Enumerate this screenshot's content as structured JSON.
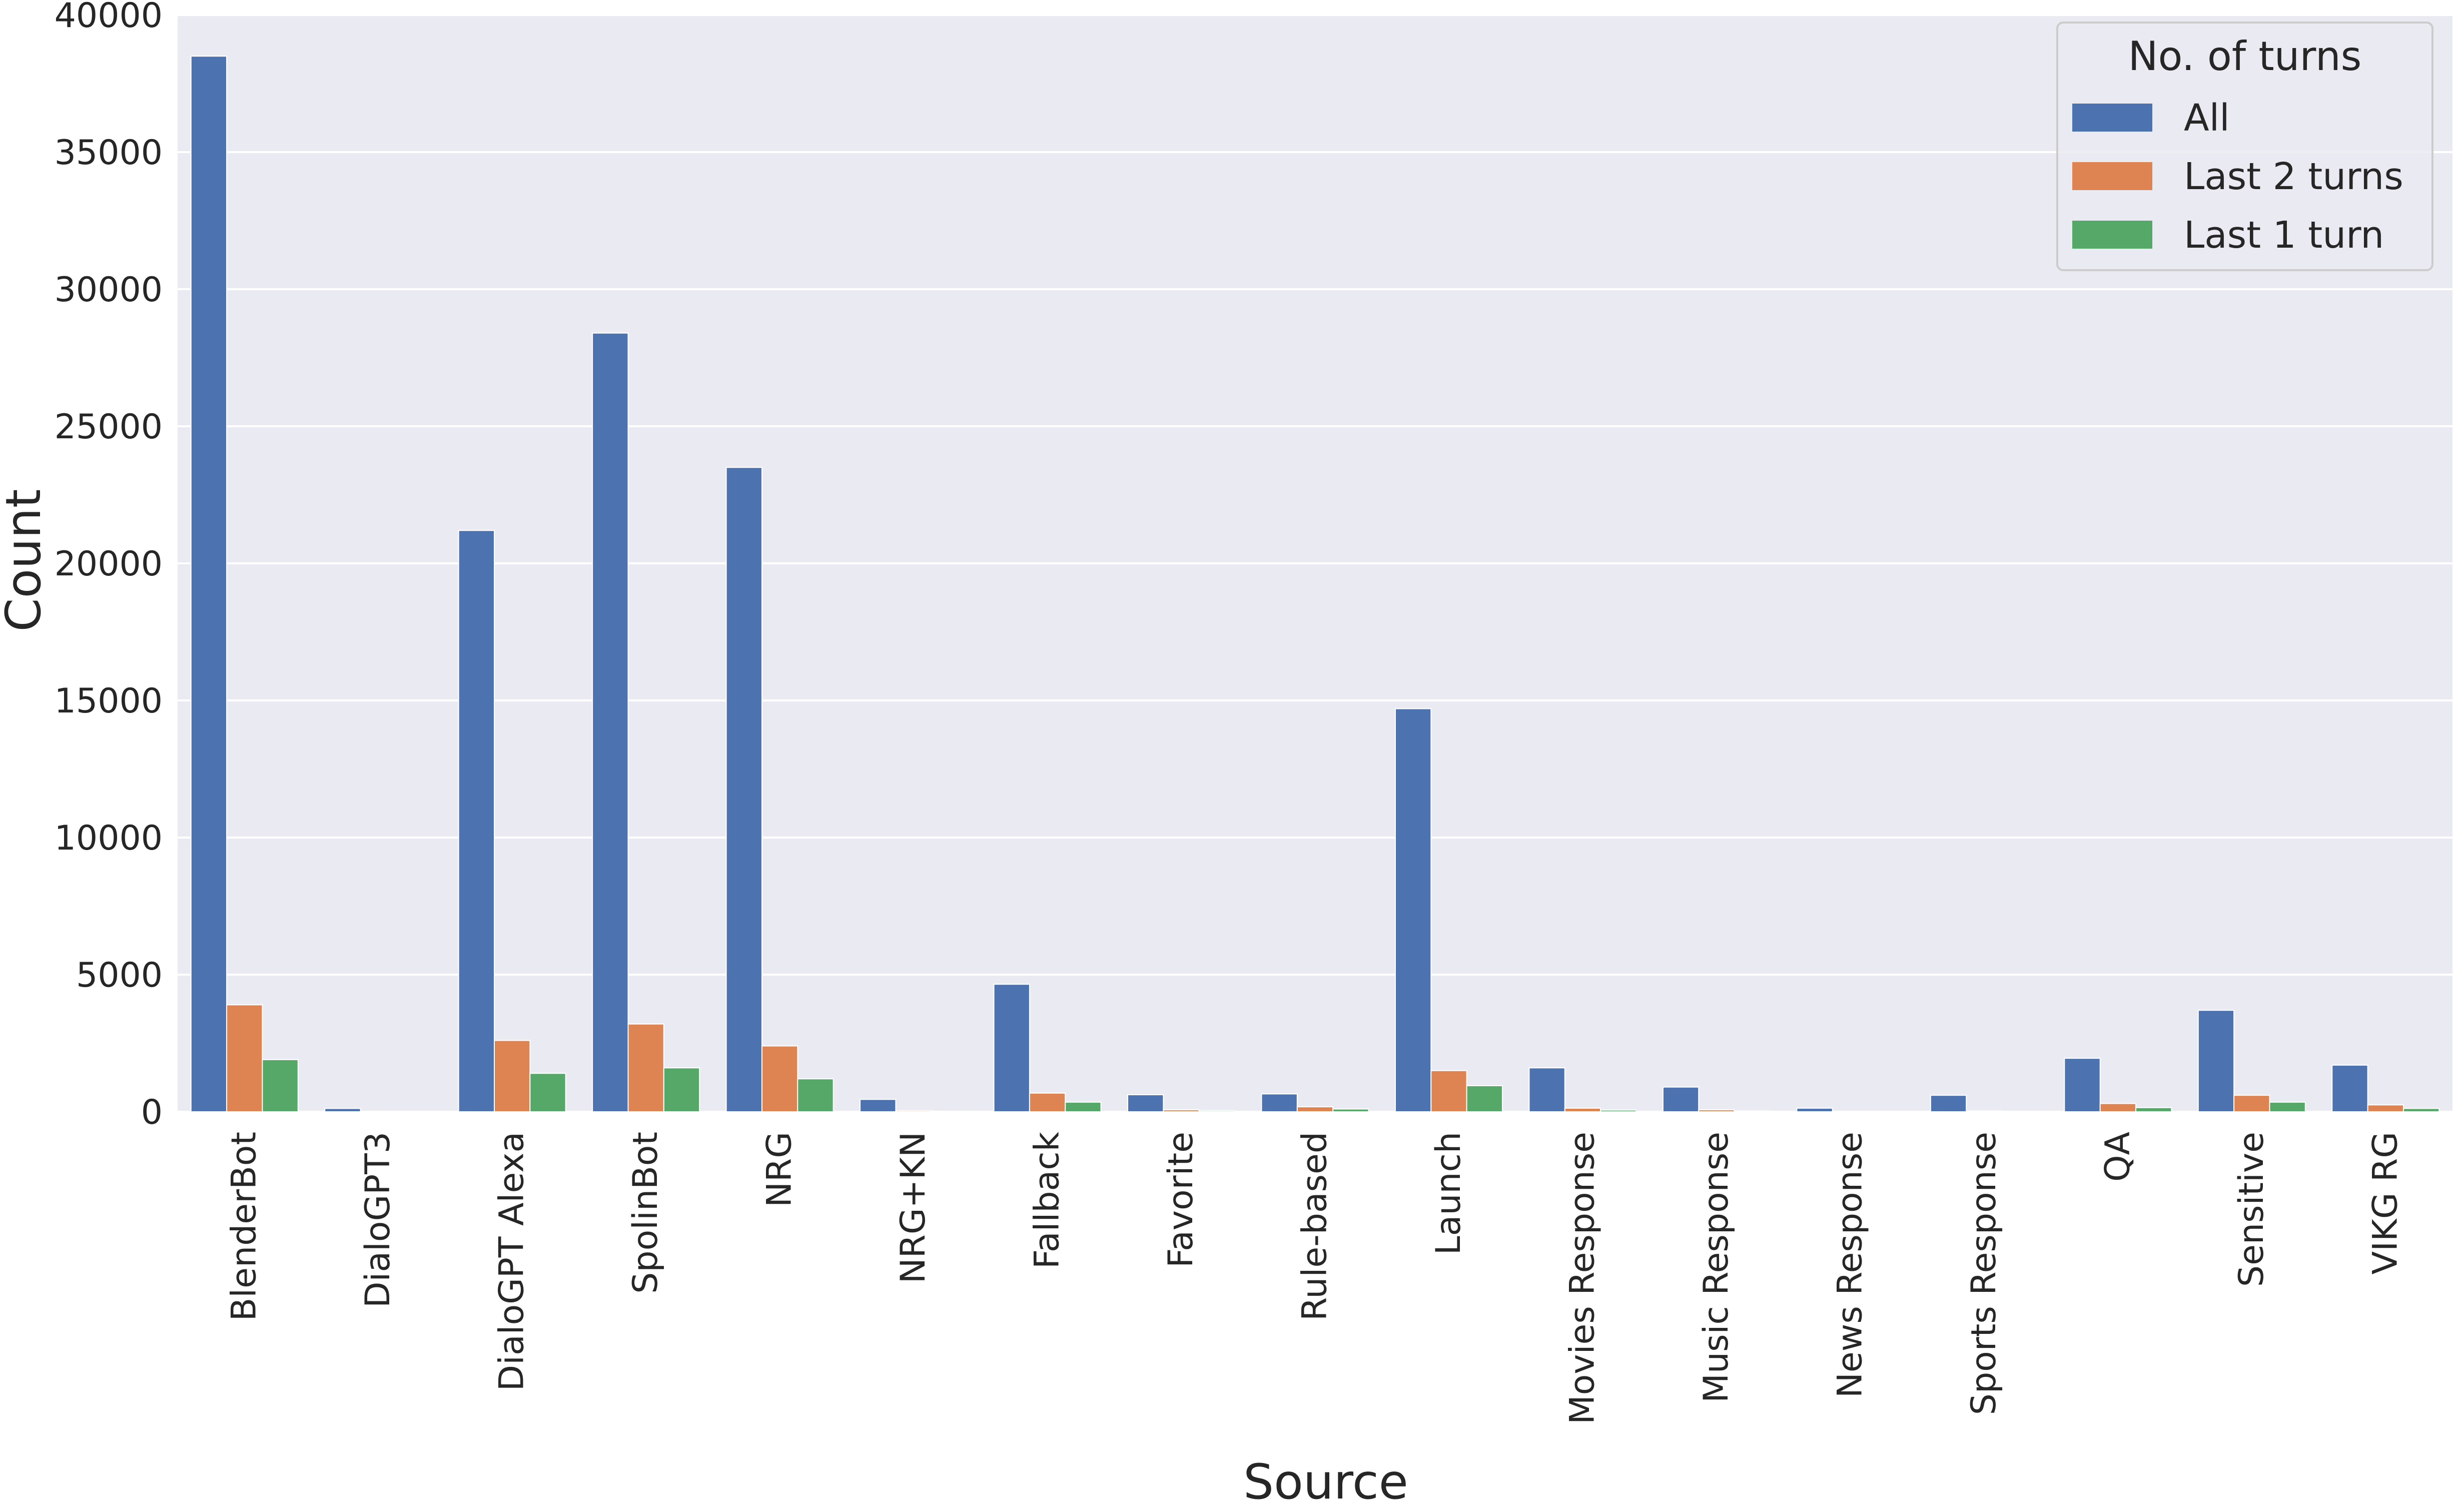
{
  "chart_data": {
    "type": "bar",
    "xlabel": "Source",
    "ylabel": "Count",
    "ylim": [
      0,
      40000
    ],
    "yticks": [
      0,
      5000,
      10000,
      15000,
      20000,
      25000,
      30000,
      35000,
      40000
    ],
    "grid": true,
    "legend": {
      "title": "No. of turns",
      "placement": "top-right"
    },
    "categories": [
      "BlenderBot",
      "DialoGPT3",
      "DialoGPT Alexa",
      "SpolinBot",
      "NRG",
      "NRG+KN",
      "Fallback",
      "Favorite",
      "Rule-based",
      "Launch",
      "Movies Response",
      "Music Response",
      "News Response",
      "Sports Response",
      "QA",
      "Sensitive",
      "VIKG RG"
    ],
    "series": [
      {
        "name": "All",
        "color": "#4c72b0",
        "values": [
          38500,
          120,
          21200,
          28400,
          23500,
          450,
          4650,
          620,
          650,
          14700,
          1600,
          900,
          130,
          600,
          1950,
          3700,
          1700
        ]
      },
      {
        "name": "Last 2 turns",
        "color": "#dd8452",
        "values": [
          3900,
          0,
          2600,
          3200,
          2400,
          40,
          680,
          70,
          180,
          1500,
          130,
          70,
          20,
          30,
          300,
          600,
          250
        ]
      },
      {
        "name": "Last 1 turn",
        "color": "#55a868",
        "values": [
          1900,
          0,
          1400,
          1600,
          1200,
          20,
          350,
          40,
          100,
          950,
          60,
          30,
          10,
          15,
          150,
          350,
          120
        ]
      }
    ]
  }
}
